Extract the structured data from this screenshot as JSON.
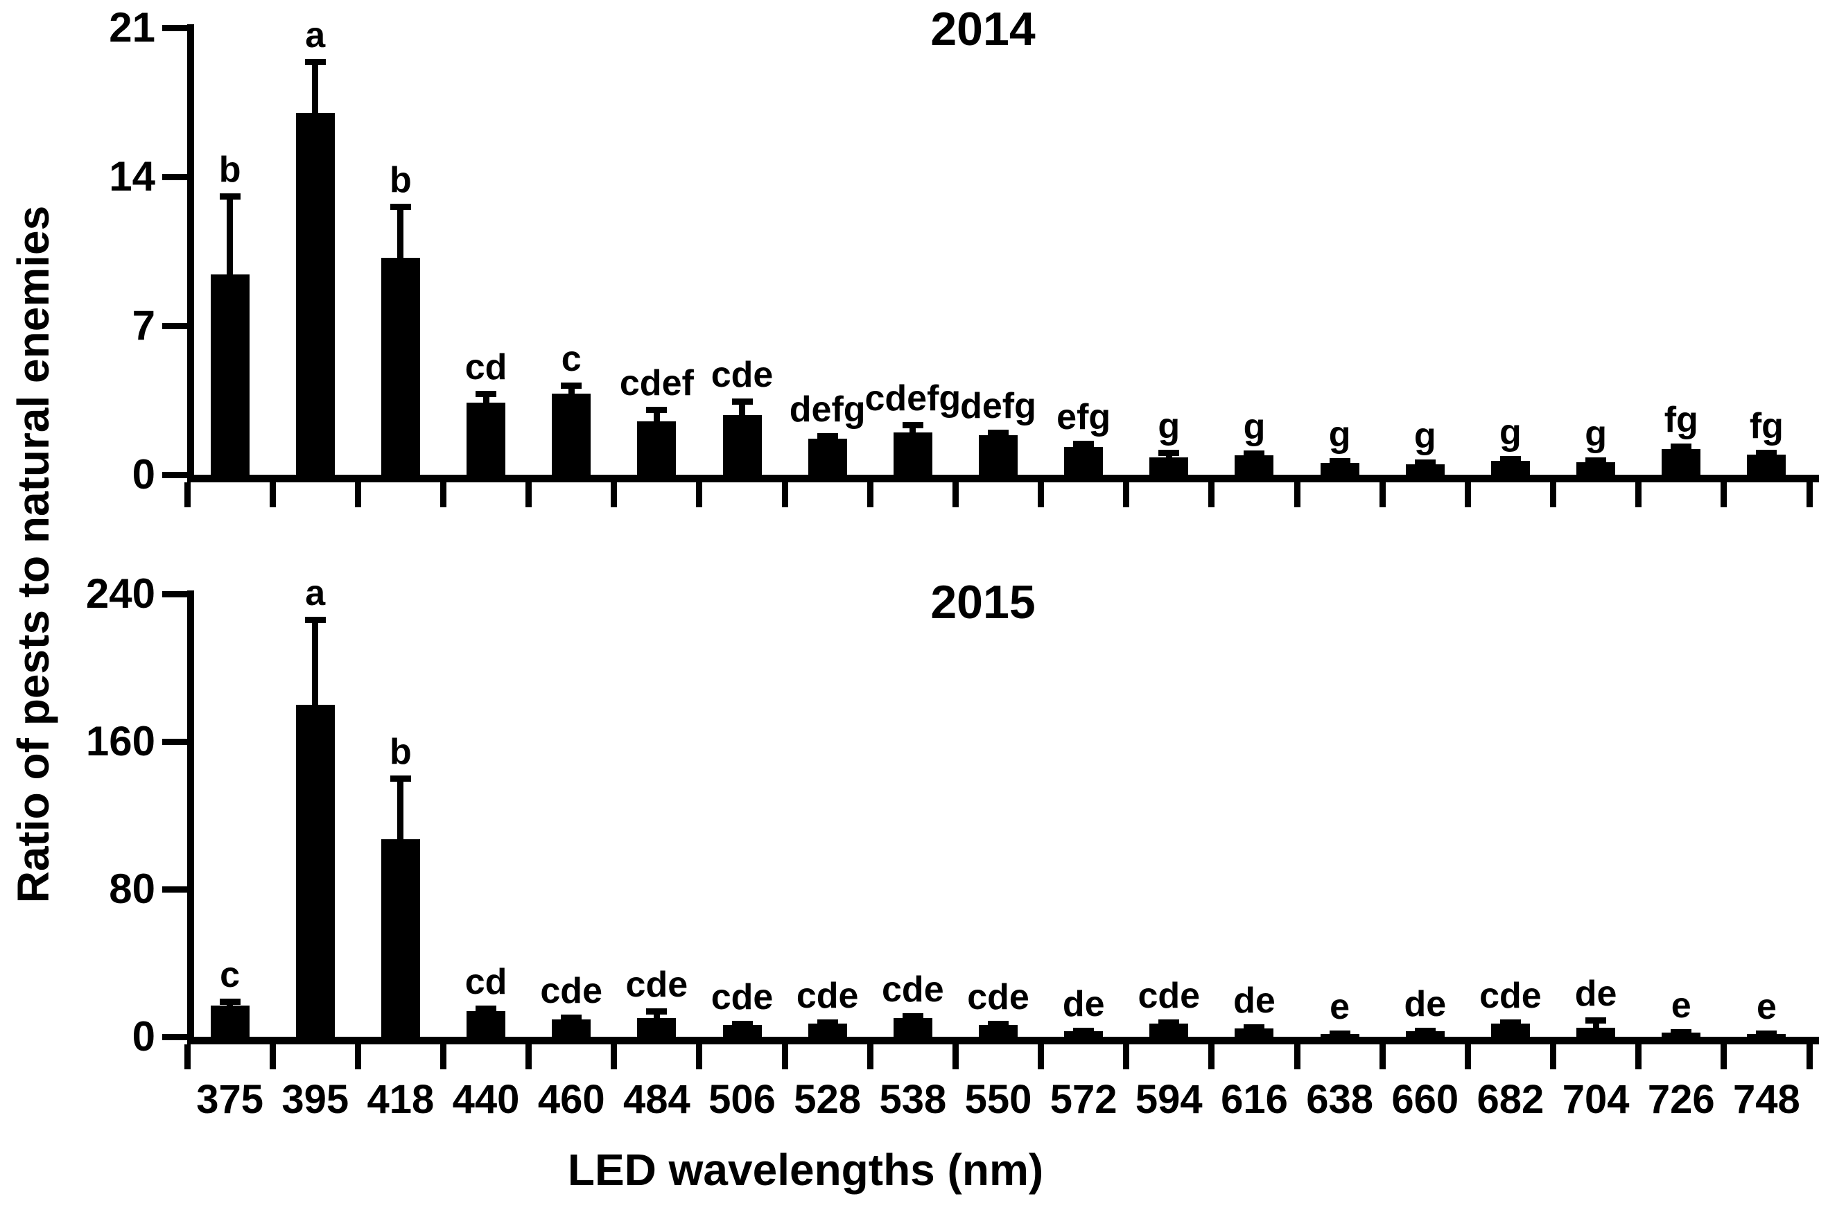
{
  "figure": {
    "y_axis_label": "Ratio of pests to natural enemies",
    "x_axis_label": "LED wavelengths (nm)",
    "background_color": "#ffffff",
    "ink_color": "#000000"
  },
  "chart_data": [
    {
      "type": "bar",
      "title": "2014",
      "xlabel": "LED wavelengths (nm)",
      "ylabel": "Ratio of pests to natural enemies",
      "categories": [
        "375",
        "395",
        "418",
        "440",
        "460",
        "484",
        "506",
        "528",
        "538",
        "550",
        "572",
        "594",
        "616",
        "638",
        "660",
        "682",
        "704",
        "726",
        "748"
      ],
      "values": [
        9.4,
        17.0,
        10.2,
        3.4,
        3.8,
        2.5,
        2.8,
        1.7,
        2.0,
        1.85,
        1.3,
        0.8,
        0.9,
        0.55,
        0.5,
        0.65,
        0.6,
        1.2,
        0.95
      ],
      "errors": [
        3.7,
        2.4,
        2.4,
        0.4,
        0.4,
        0.55,
        0.65,
        0.12,
        0.35,
        0.15,
        0.15,
        0.25,
        0.12,
        0.1,
        0.08,
        0.1,
        0.1,
        0.15,
        0.1
      ],
      "sig_letters": [
        "b",
        "a",
        "b",
        "cd",
        "c",
        "cdef",
        "cde",
        "defg",
        "cdefg",
        "defg",
        "efg",
        "g",
        "g",
        "g",
        "g",
        "g",
        "g",
        "fg",
        "fg"
      ],
      "ylim": [
        0,
        21
      ],
      "yticks": [
        0,
        7,
        14,
        21
      ],
      "bar_color": "#000000",
      "error_bars": true,
      "grid": false,
      "legend": "none"
    },
    {
      "type": "bar",
      "title": "2015",
      "xlabel": "LED wavelengths (nm)",
      "ylabel": "Ratio of pests to natural enemies",
      "categories": [
        "375",
        "395",
        "418",
        "440",
        "460",
        "484",
        "506",
        "528",
        "538",
        "550",
        "572",
        "594",
        "616",
        "638",
        "660",
        "682",
        "704",
        "726",
        "748"
      ],
      "values": [
        17,
        180,
        107,
        14,
        9.5,
        10,
        6.5,
        7,
        10,
        6.5,
        3,
        7,
        4.5,
        1.5,
        3,
        7,
        5,
        2.3,
        1.5
      ],
      "errors": [
        2,
        46,
        33,
        1.5,
        1,
        4,
        0.8,
        0.8,
        1.2,
        0.8,
        0.5,
        1,
        0.6,
        0.3,
        0.5,
        1,
        4,
        0.5,
        0.3
      ],
      "sig_letters": [
        "c",
        "a",
        "b",
        "cd",
        "cde",
        "cde",
        "cde",
        "cde",
        "cde",
        "cde",
        "de",
        "cde",
        "de",
        "e",
        "de",
        "cde",
        "de",
        "e",
        "e"
      ],
      "ylim": [
        0,
        240
      ],
      "yticks": [
        0,
        80,
        160,
        240
      ],
      "bar_color": "#000000",
      "error_bars": true,
      "grid": false,
      "legend": "none"
    }
  ]
}
